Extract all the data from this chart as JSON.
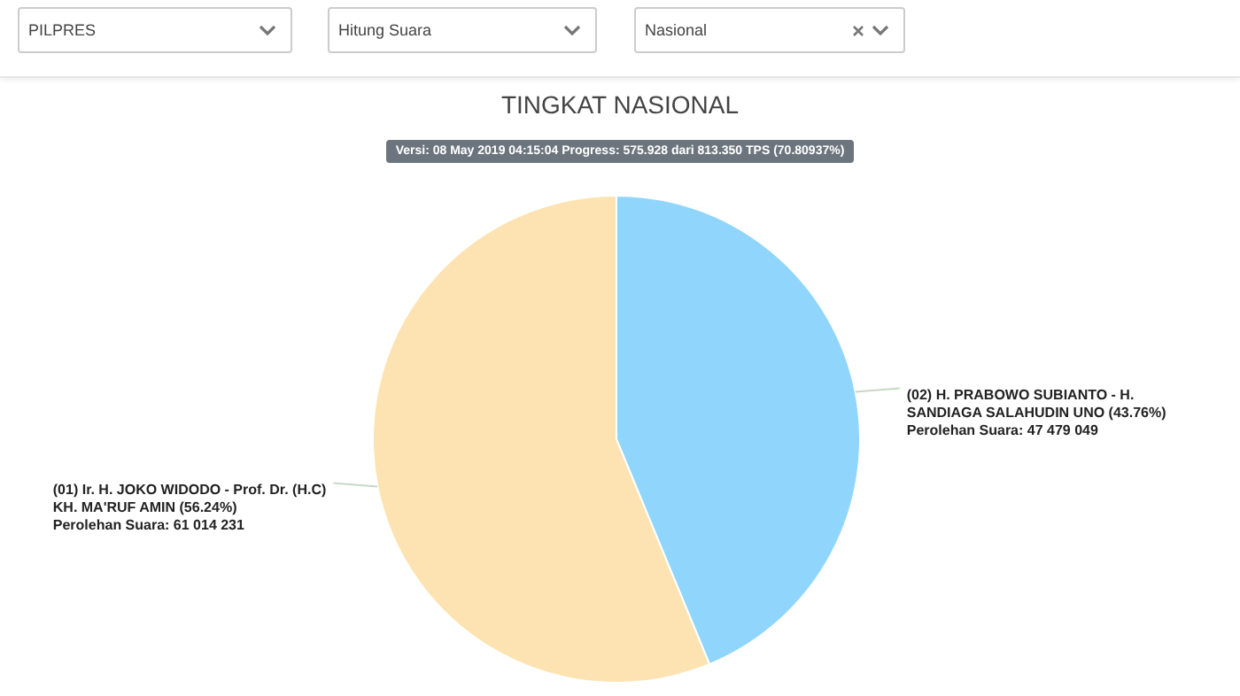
{
  "chart_data": {
    "type": "pie",
    "title": "TINGKAT NASIONAL",
    "subtitle": "Versi: 08 May 2019 04:15:04 Progress: 575.928 dari 813.350 TPS (70.80937%)",
    "categories": [
      "(02) H. PRABOWO SUBIANTO - H. SANDIAGA SALAHUDIN UNO (43.76%)",
      "(01) Ir. H. JOKO WIDODO - Prof. Dr. (H.C) KH. MA'RUF AMIN (56.24%)"
    ],
    "values": [
      47479049,
      61014231
    ],
    "colors": [
      "#90d5fb",
      "#fde3b1"
    ],
    "value_labels": [
      "Perolehan Suara: 47 479 049",
      "Perolehan Suara: 61 014 231"
    ],
    "annotations": [
      "PILPRES",
      "Hitung Suara",
      "Nasional"
    ],
    "legend": false
  }
}
